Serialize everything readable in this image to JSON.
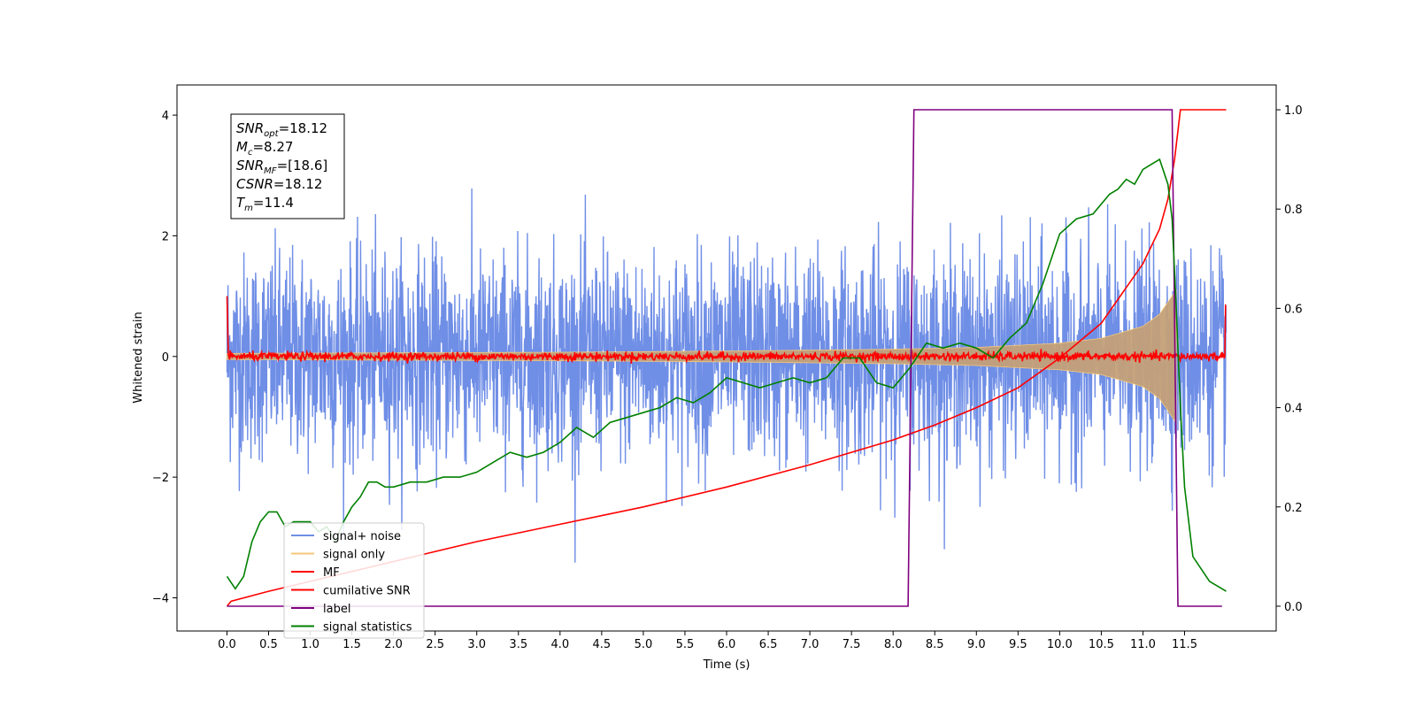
{
  "chart_data": {
    "type": "line",
    "title": "",
    "xlabel": "Time (s)",
    "ylabel": "Whitened strain",
    "xlim": [
      -0.6,
      12.6
    ],
    "ylim": [
      -4.55,
      4.5
    ],
    "y2lim": [
      -0.05,
      1.05
    ],
    "xticks": [
      0.0,
      0.5,
      1.0,
      1.5,
      2.0,
      2.5,
      3.0,
      3.5,
      4.0,
      4.5,
      5.0,
      5.5,
      6.0,
      6.5,
      7.0,
      7.5,
      8.0,
      8.5,
      9.0,
      9.5,
      10.0,
      10.5,
      11.0,
      11.5
    ],
    "xtick_labels": [
      "0.0",
      "0.5",
      "1.0",
      "1.5",
      "2.0",
      "2.5",
      "3.0",
      "3.5",
      "4.0",
      "4.5",
      "5.0",
      "5.5",
      "6.0",
      "6.5",
      "7.0",
      "7.5",
      "8.0",
      "8.5",
      "9.0",
      "9.5",
      "10.0",
      "10.5",
      "11.0",
      "11.5"
    ],
    "yticks": [
      -4,
      -2,
      0,
      2,
      4
    ],
    "ytick_labels": [
      "−4",
      "−2",
      "0",
      "2",
      "4"
    ],
    "y2ticks": [
      0.0,
      0.2,
      0.4,
      0.6,
      0.8,
      1.0
    ],
    "y2tick_labels": [
      "0.0",
      "0.2",
      "0.4",
      "0.6",
      "0.8",
      "1.0"
    ],
    "grid": false,
    "legend_position": "lower-left",
    "annotation": [
      {
        "base": "SNR",
        "sub": "opt",
        "value": "=18.12"
      },
      {
        "base": "M",
        "sub": "c",
        "value": "=8.27"
      },
      {
        "base": "SNR",
        "sub": "MF",
        "value": "=[18.6]"
      },
      {
        "base": "CSNR",
        "sub": "",
        "value": "=18.12"
      },
      {
        "base": "T",
        "sub": "m",
        "value": "=11.4"
      }
    ],
    "series": [
      {
        "name": "signal+ noise",
        "color": "#6f8ee6",
        "axis": "left",
        "kind": "noise",
        "t_start": 0.0,
        "t_end": 12.0,
        "std": 0.85
      },
      {
        "name": "signal only",
        "color": "#f5c87a",
        "axis": "left",
        "kind": "chirp",
        "t_start": 0.0,
        "t_end": 11.4,
        "envelope_t": [
          0.0,
          2.0,
          4.0,
          6.0,
          8.0,
          9.0,
          10.0,
          10.5,
          11.0,
          11.2,
          11.4
        ],
        "envelope_v": [
          0.05,
          0.06,
          0.07,
          0.09,
          0.12,
          0.15,
          0.22,
          0.3,
          0.5,
          0.7,
          1.1
        ]
      },
      {
        "name": "MF",
        "color": "#ff0000",
        "axis": "left",
        "kind": "mf",
        "t_start": 0.0,
        "t_end": 12.0,
        "std": 0.035
      },
      {
        "name": "cumilative SNR",
        "color": "#ff0000",
        "axis": "right",
        "x": [
          0.0,
          0.05,
          0.5,
          1.0,
          2.0,
          3.0,
          4.0,
          5.0,
          6.0,
          7.0,
          8.0,
          8.5,
          9.0,
          9.5,
          10.0,
          10.5,
          11.0,
          11.2,
          11.3,
          11.38,
          11.45,
          12.0
        ],
        "y": [
          0.0,
          0.01,
          0.03,
          0.05,
          0.09,
          0.13,
          0.165,
          0.2,
          0.24,
          0.285,
          0.335,
          0.365,
          0.4,
          0.44,
          0.5,
          0.57,
          0.69,
          0.76,
          0.82,
          0.9,
          1.0,
          1.0
        ]
      },
      {
        "name": "label",
        "color": "#800080",
        "axis": "right",
        "x": [
          0.0,
          8.18,
          8.25,
          11.35,
          11.42,
          11.95
        ],
        "y": [
          0.0,
          0.0,
          1.0,
          1.0,
          0.0,
          0.0
        ]
      },
      {
        "name": "signal statistics",
        "color": "#008000",
        "axis": "right",
        "x": [
          0.0,
          0.1,
          0.2,
          0.3,
          0.4,
          0.5,
          0.6,
          0.7,
          0.8,
          0.9,
          1.0,
          1.1,
          1.2,
          1.3,
          1.4,
          1.5,
          1.6,
          1.7,
          1.8,
          1.9,
          2.0,
          2.2,
          2.4,
          2.6,
          2.8,
          3.0,
          3.2,
          3.4,
          3.6,
          3.8,
          4.0,
          4.2,
          4.4,
          4.6,
          4.8,
          5.0,
          5.2,
          5.4,
          5.6,
          5.8,
          6.0,
          6.2,
          6.4,
          6.6,
          6.8,
          7.0,
          7.2,
          7.4,
          7.6,
          7.8,
          8.0,
          8.2,
          8.4,
          8.6,
          8.8,
          9.0,
          9.2,
          9.4,
          9.6,
          9.8,
          10.0,
          10.2,
          10.4,
          10.6,
          10.7,
          10.8,
          10.9,
          11.0,
          11.1,
          11.2,
          11.3,
          11.35,
          11.4,
          11.45,
          11.5,
          11.6,
          11.8,
          12.0
        ],
        "y": [
          0.06,
          0.035,
          0.06,
          0.13,
          0.17,
          0.19,
          0.19,
          0.16,
          0.17,
          0.17,
          0.17,
          0.15,
          0.16,
          0.13,
          0.17,
          0.2,
          0.22,
          0.25,
          0.25,
          0.24,
          0.24,
          0.25,
          0.25,
          0.26,
          0.26,
          0.27,
          0.29,
          0.31,
          0.3,
          0.31,
          0.33,
          0.36,
          0.34,
          0.37,
          0.38,
          0.39,
          0.4,
          0.42,
          0.41,
          0.43,
          0.46,
          0.45,
          0.44,
          0.45,
          0.46,
          0.45,
          0.46,
          0.5,
          0.5,
          0.45,
          0.44,
          0.48,
          0.53,
          0.52,
          0.53,
          0.52,
          0.5,
          0.54,
          0.57,
          0.65,
          0.75,
          0.78,
          0.79,
          0.83,
          0.84,
          0.86,
          0.85,
          0.88,
          0.89,
          0.9,
          0.85,
          0.78,
          0.6,
          0.4,
          0.24,
          0.1,
          0.05,
          0.03
        ]
      }
    ]
  }
}
